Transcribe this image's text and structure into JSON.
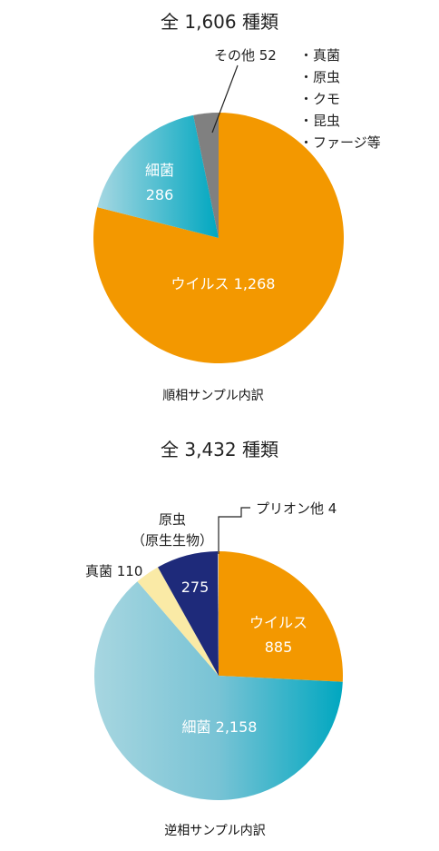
{
  "chart_data": [
    {
      "type": "pie",
      "title": "全 1,606 種類",
      "caption": "順相サンプル内訳",
      "slices": [
        {
          "key": "virus",
          "label": "ウイルス 1,268",
          "value": 1268,
          "color": "#f39800"
        },
        {
          "key": "bacteria",
          "label_line1": "細菌",
          "label_line2": "286",
          "value": 286,
          "color": "#2aaec5"
        },
        {
          "key": "other",
          "label": "その他 52",
          "value": 52,
          "color": "#808080"
        }
      ],
      "other_breakdown": [
        "・真菌",
        "・原虫",
        "・クモ",
        "・昆虫",
        "・ファージ等"
      ]
    },
    {
      "type": "pie",
      "title": "全 3,432 種類",
      "caption": "逆相サンプル内訳",
      "slices": [
        {
          "key": "virus",
          "label_line1": "ウイルス",
          "label_line2": "885",
          "value": 885,
          "color": "#f39800"
        },
        {
          "key": "bacteria",
          "label": "細菌 2,158",
          "value": 2158,
          "color": "#2aaec5"
        },
        {
          "key": "fungi",
          "label": "真菌 110",
          "value": 110,
          "color": "#faeaa6"
        },
        {
          "key": "protozoa",
          "label": "275",
          "label_name1": "原虫",
          "label_name2": "（原生生物）",
          "value": 275,
          "color": "#1e2a7a"
        },
        {
          "key": "prion",
          "label": "プリオン他 4",
          "value": 4,
          "color": "#bbbbbb"
        }
      ]
    }
  ]
}
